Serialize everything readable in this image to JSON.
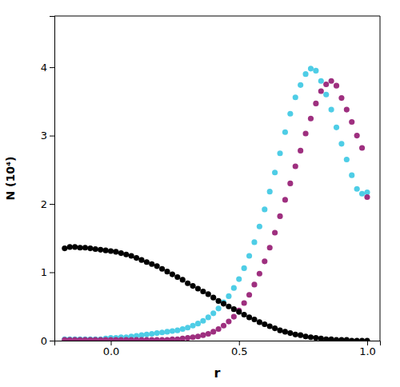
{
  "chart_data": {
    "type": "scatter",
    "xlabel": "r",
    "ylabel": "N (10⁴)",
    "xlim": [
      -0.22,
      1.05
    ],
    "ylim": [
      0,
      4.75
    ],
    "xticks": [
      {
        "value": 0,
        "label": "0.0"
      },
      0.5,
      {
        "value": 1,
        "label": "1.0"
      }
    ],
    "yticks": [
      0,
      1,
      2,
      3,
      4
    ],
    "grid": false,
    "series": [
      {
        "color": "#4ecde6",
        "marker": "circle",
        "x": [
          -0.18,
          -0.16,
          -0.14,
          -0.12,
          -0.1,
          -0.08,
          -0.06,
          -0.04,
          -0.02,
          0.0,
          0.02,
          0.04,
          0.06,
          0.08,
          0.1,
          0.12,
          0.14,
          0.16,
          0.18,
          0.2,
          0.22,
          0.24,
          0.26,
          0.28,
          0.3,
          0.32,
          0.34,
          0.36,
          0.38,
          0.4,
          0.42,
          0.44,
          0.46,
          0.48,
          0.5,
          0.52,
          0.54,
          0.56,
          0.58,
          0.6,
          0.62,
          0.64,
          0.66,
          0.68,
          0.7,
          0.72,
          0.74,
          0.76,
          0.78,
          0.8,
          0.82,
          0.84,
          0.86,
          0.88,
          0.9,
          0.92,
          0.94,
          0.96,
          0.98,
          1.0
        ],
        "values": [
          0.02,
          0.02,
          0.02,
          0.02,
          0.02,
          0.02,
          0.02,
          0.02,
          0.03,
          0.04,
          0.04,
          0.05,
          0.05,
          0.06,
          0.07,
          0.08,
          0.09,
          0.1,
          0.11,
          0.12,
          0.13,
          0.14,
          0.15,
          0.17,
          0.19,
          0.22,
          0.25,
          0.29,
          0.34,
          0.4,
          0.47,
          0.56,
          0.65,
          0.77,
          0.9,
          1.06,
          1.24,
          1.44,
          1.67,
          1.92,
          2.18,
          2.46,
          2.74,
          3.05,
          3.32,
          3.56,
          3.74,
          3.9,
          3.98,
          3.95,
          3.8,
          3.6,
          3.38,
          3.12,
          2.88,
          2.65,
          2.42,
          2.22,
          2.15,
          2.17
        ]
      },
      {
        "color": "#9e2f7f",
        "marker": "circle",
        "x": [
          -0.18,
          -0.16,
          -0.14,
          -0.12,
          -0.1,
          -0.08,
          -0.06,
          -0.04,
          -0.02,
          0.0,
          0.02,
          0.04,
          0.06,
          0.08,
          0.1,
          0.12,
          0.14,
          0.16,
          0.18,
          0.2,
          0.22,
          0.24,
          0.26,
          0.28,
          0.3,
          0.32,
          0.34,
          0.36,
          0.38,
          0.4,
          0.42,
          0.44,
          0.46,
          0.48,
          0.5,
          0.52,
          0.54,
          0.56,
          0.58,
          0.6,
          0.62,
          0.64,
          0.66,
          0.68,
          0.7,
          0.72,
          0.74,
          0.76,
          0.78,
          0.8,
          0.82,
          0.84,
          0.86,
          0.88,
          0.9,
          0.92,
          0.94,
          0.96,
          0.98,
          1.0
        ],
        "values": [
          0.01,
          0.01,
          0.01,
          0.01,
          0.01,
          0.01,
          0.01,
          0.01,
          0.01,
          0.01,
          0.01,
          0.01,
          0.01,
          0.01,
          0.01,
          0.01,
          0.01,
          0.01,
          0.01,
          0.01,
          0.01,
          0.02,
          0.02,
          0.03,
          0.04,
          0.05,
          0.06,
          0.08,
          0.1,
          0.13,
          0.17,
          0.22,
          0.28,
          0.35,
          0.44,
          0.55,
          0.67,
          0.82,
          0.98,
          1.16,
          1.36,
          1.58,
          1.82,
          2.06,
          2.3,
          2.55,
          2.78,
          3.03,
          3.25,
          3.47,
          3.65,
          3.75,
          3.8,
          3.73,
          3.55,
          3.38,
          3.2,
          3.0,
          2.82,
          2.1
        ]
      },
      {
        "color": "#000000",
        "marker": "circle",
        "x": [
          -0.18,
          -0.16,
          -0.14,
          -0.12,
          -0.1,
          -0.08,
          -0.06,
          -0.04,
          -0.02,
          0.0,
          0.02,
          0.04,
          0.06,
          0.08,
          0.1,
          0.12,
          0.14,
          0.16,
          0.18,
          0.2,
          0.22,
          0.24,
          0.26,
          0.28,
          0.3,
          0.32,
          0.34,
          0.36,
          0.38,
          0.4,
          0.42,
          0.44,
          0.46,
          0.48,
          0.5,
          0.52,
          0.54,
          0.56,
          0.58,
          0.6,
          0.62,
          0.64,
          0.66,
          0.68,
          0.7,
          0.72,
          0.74,
          0.76,
          0.78,
          0.8,
          0.82,
          0.84,
          0.86,
          0.88,
          0.9,
          0.92,
          0.94,
          0.96,
          0.98,
          1.0
        ],
        "values": [
          1.35,
          1.37,
          1.37,
          1.36,
          1.36,
          1.35,
          1.34,
          1.33,
          1.32,
          1.31,
          1.3,
          1.28,
          1.26,
          1.24,
          1.21,
          1.18,
          1.15,
          1.12,
          1.09,
          1.05,
          1.01,
          0.97,
          0.93,
          0.89,
          0.84,
          0.8,
          0.76,
          0.72,
          0.68,
          0.63,
          0.58,
          0.54,
          0.5,
          0.46,
          0.42,
          0.38,
          0.34,
          0.31,
          0.27,
          0.24,
          0.21,
          0.18,
          0.15,
          0.13,
          0.11,
          0.09,
          0.08,
          0.06,
          0.05,
          0.04,
          0.03,
          0.02,
          0.02,
          0.01,
          0.01,
          0.01,
          0.0,
          0.0,
          0.0,
          0.0
        ]
      }
    ]
  }
}
